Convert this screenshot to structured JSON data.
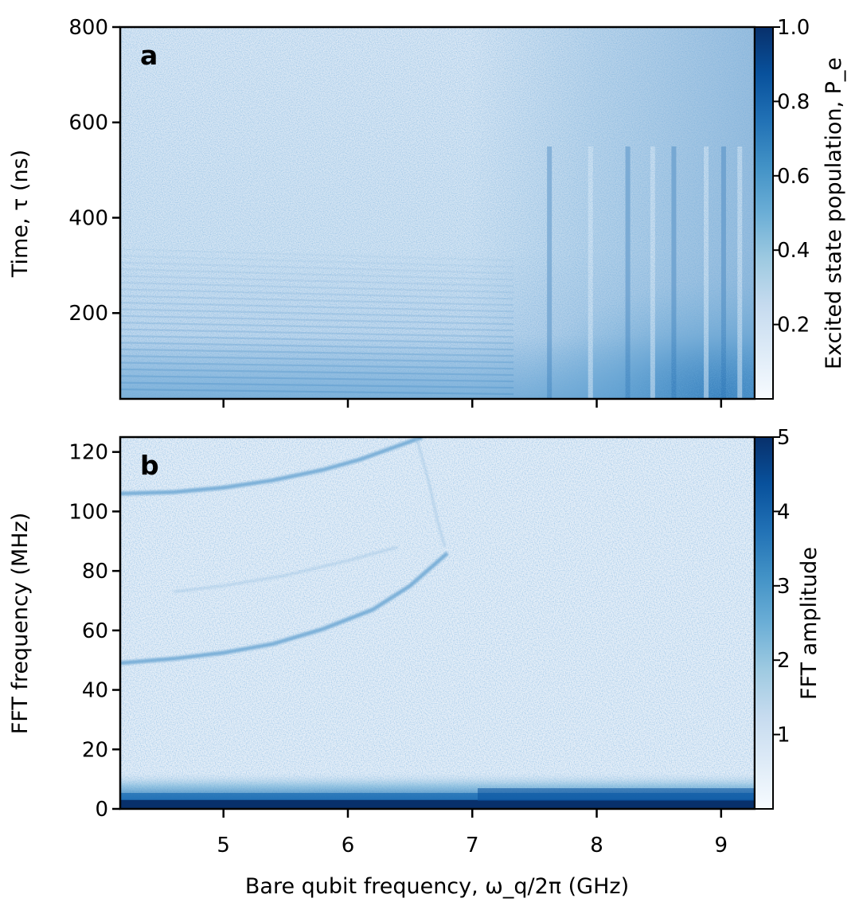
{
  "chart_data": [
    {
      "type": "heatmap",
      "panel_label": "a",
      "xlim": [
        4.17,
        9.27
      ],
      "ylim": [
        20,
        800
      ],
      "xticks": [
        5,
        6,
        7,
        8,
        9
      ],
      "xtick_labels_shown": false,
      "yticks": [
        200,
        400,
        600,
        800
      ],
      "ylabel": "Time, τ (ns)",
      "colorbar": {
        "label": "Excited state population, P_e",
        "range": [
          0,
          1.0
        ],
        "ticks": [
          0.2,
          0.4,
          0.6,
          0.8
        ],
        "tick_labels": [
          "0.2",
          "0.4",
          "0.6",
          "0.8"
        ],
        "max_label": "1.0",
        "colormap": "Blues"
      },
      "features": {
        "background_level": 0.2,
        "oscillation_fringes_at_low_frequency": true,
        "stronger_population_high_frequency_short_time": true,
        "vertical_stripes_x": [
          7.62,
          7.95,
          8.25,
          8.45,
          8.62,
          8.88,
          9.02,
          9.15
        ]
      }
    },
    {
      "type": "heatmap",
      "panel_label": "b",
      "xlim": [
        4.17,
        9.27
      ],
      "ylim": [
        0,
        125
      ],
      "xticks": [
        5,
        6,
        7,
        8,
        9
      ],
      "xlabel": "Bare qubit frequency, ω_q/2π (GHz)",
      "yticks": [
        0,
        20,
        40,
        60,
        80,
        100,
        120
      ],
      "ylabel": "FFT frequency (MHz)",
      "colorbar": {
        "label": "FFT amplitude",
        "range": [
          0,
          5
        ],
        "ticks": [
          1,
          2,
          3,
          4
        ],
        "tick_labels": [
          "1",
          "2",
          "3",
          "4"
        ],
        "max_label": "5",
        "colormap": "Blues"
      },
      "curves": [
        {
          "x": [
            4.17,
            4.6,
            5.0,
            5.4,
            5.8,
            6.1,
            6.4,
            6.6
          ],
          "y": [
            106,
            106.5,
            108,
            110.5,
            114,
            117.5,
            122,
            125
          ]
        },
        {
          "x": [
            4.17,
            4.6,
            5.0,
            5.4,
            5.8,
            6.2,
            6.5,
            6.8
          ],
          "y": [
            49,
            50.5,
            52.5,
            55.5,
            60.5,
            67,
            75,
            86
          ]
        },
        {
          "x": [
            6.55,
            6.65,
            6.72,
            6.78
          ],
          "y": [
            125,
            110,
            97,
            88
          ]
        },
        {
          "x": [
            4.6,
            5.0,
            5.5,
            6.0,
            6.4
          ],
          "y": [
            73,
            75,
            78.5,
            83.5,
            88
          ]
        }
      ],
      "dc_band": {
        "y_range": [
          0,
          3
        ],
        "amplitude": 5
      }
    }
  ]
}
